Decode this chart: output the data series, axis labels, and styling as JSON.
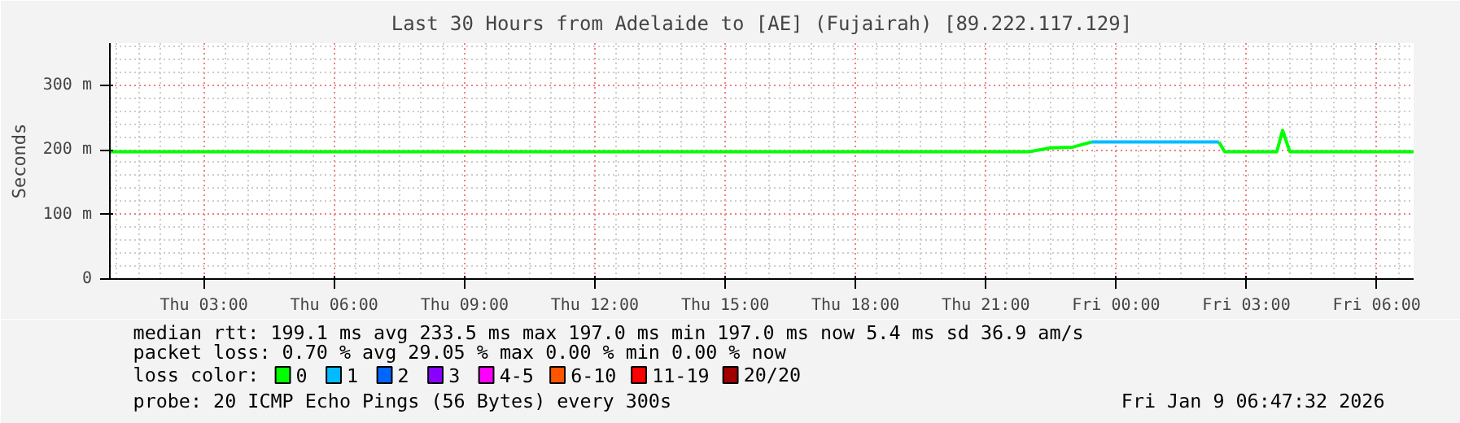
{
  "chart_data": {
    "type": "line",
    "title": "Last 30 Hours from Adelaide to [AE] (Fujairah) [89.222.117.129]",
    "ylabel": "Seconds",
    "x": [
      "2026-01-08T00:50",
      "2026-01-08T05:00",
      "2026-01-08T10:00",
      "2026-01-08T14:00",
      "2026-01-08T16:00",
      "2026-01-08T20:00",
      "2026-01-08T22:00",
      "2026-01-08T22:30",
      "2026-01-08T23:00",
      "2026-01-08T23:26",
      "2026-01-09T00:00",
      "2026-01-09T01:00",
      "2026-01-09T02:00",
      "2026-01-09T02:22",
      "2026-01-09T02:30",
      "2026-01-09T03:00",
      "2026-01-09T03:42",
      "2026-01-09T03:50",
      "2026-01-09T04:00",
      "2026-01-09T04:30",
      "2026-01-09T06:00",
      "2026-01-09T06:51"
    ],
    "series": [
      {
        "name": "0",
        "color": "#00ff00",
        "values": [
          197,
          197,
          197,
          197,
          197,
          197,
          197,
          203,
          204,
          212,
          null,
          null,
          null,
          212,
          197,
          197,
          197,
          230,
          197,
          197,
          197,
          197
        ]
      },
      {
        "name": "1",
        "color": "#00bbff",
        "values": [
          null,
          null,
          null,
          null,
          null,
          null,
          null,
          null,
          null,
          212,
          212,
          212,
          212,
          212,
          null,
          null,
          null,
          null,
          null,
          null,
          null,
          null
        ]
      },
      {
        "name": "2",
        "color": "#0066ff",
        "values": [
          null,
          null,
          null,
          null,
          null,
          null,
          null,
          null,
          null,
          null,
          null,
          null,
          null,
          null,
          null,
          null,
          null,
          null,
          null,
          null,
          null,
          null
        ]
      },
      {
        "name": "3",
        "color": "#8a00ff",
        "values": [
          null,
          null,
          null,
          null,
          null,
          null,
          null,
          null,
          null,
          null,
          null,
          null,
          null,
          null,
          null,
          null,
          null,
          null,
          null,
          null,
          null,
          null
        ]
      },
      {
        "name": "4-5",
        "color": "#ff00ff",
        "values": [
          null,
          null,
          null,
          null,
          null,
          null,
          null,
          null,
          null,
          null,
          null,
          null,
          null,
          null,
          null,
          null,
          null,
          null,
          null,
          null,
          null,
          null
        ]
      },
      {
        "name": "6-10",
        "color": "#ff5500",
        "values": [
          null,
          null,
          null,
          null,
          null,
          null,
          null,
          null,
          null,
          null,
          null,
          null,
          null,
          null,
          null,
          null,
          null,
          null,
          null,
          null,
          null,
          null
        ]
      },
      {
        "name": "11-19",
        "color": "#ff0000",
        "values": [
          null,
          null,
          null,
          null,
          null,
          null,
          null,
          null,
          null,
          null,
          null,
          null,
          null,
          null,
          null,
          null,
          null,
          null,
          null,
          null,
          null,
          null
        ]
      },
      {
        "name": "20/20",
        "color": "#a10000",
        "values": [
          null,
          null,
          null,
          null,
          null,
          null,
          null,
          null,
          null,
          null,
          null,
          null,
          null,
          null,
          null,
          null,
          null,
          null,
          null,
          null,
          null,
          null
        ]
      }
    ],
    "legend_title": "loss color:",
    "legend": "bottom",
    "xlim": [
      "2026-01-08T00:50",
      "2026-01-09T06:51"
    ],
    "xticks": [
      {
        "value": "2026-01-08T03:00",
        "label": "Thu 03:00"
      },
      {
        "value": "2026-01-08T06:00",
        "label": "Thu 06:00"
      },
      {
        "value": "2026-01-08T09:00",
        "label": "Thu 09:00"
      },
      {
        "value": "2026-01-08T12:00",
        "label": "Thu 12:00"
      },
      {
        "value": "2026-01-08T15:00",
        "label": "Thu 15:00"
      },
      {
        "value": "2026-01-08T18:00",
        "label": "Thu 18:00"
      },
      {
        "value": "2026-01-08T21:00",
        "label": "Thu 21:00"
      },
      {
        "value": "2026-01-09T00:00",
        "label": "Fri 00:00"
      },
      {
        "value": "2026-01-09T03:00",
        "label": "Fri 03:00"
      },
      {
        "value": "2026-01-09T06:00",
        "label": "Fri 06:00"
      }
    ],
    "ylim": [
      0,
      365
    ],
    "yticks": [
      0,
      {
        "value": 100,
        "label": "100 m"
      },
      {
        "value": 200,
        "label": "200 m"
      },
      {
        "value": 300,
        "label": "300 m"
      }
    ],
    "grid": true,
    "marker": "none",
    "line_style": "solid",
    "annotations": [
      "median rtt:  199.1 ms avg  233.5 ms max  197.0 ms min  197.0 ms now  5.4 ms sd  36.9   am/s",
      "packet loss: 0.70 % avg  29.05 % max  0.00 % min  0.00 % now",
      "probe:       20 ICMP Echo Pings (56 Bytes) every 300s",
      "Fri Jan  9 06:47:32 2026"
    ]
  }
}
